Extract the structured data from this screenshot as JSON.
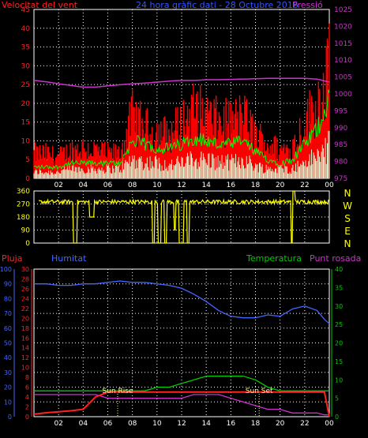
{
  "header": {
    "wind_speed_label": "Velocitat del vent",
    "title": "24 hora gràfic dati - 28 Octubre 2016",
    "pressure_label": "Pressió"
  },
  "compass": [
    "N",
    "W",
    "S",
    "E",
    "N"
  ],
  "lower_header": {
    "rain_label": "Pluja",
    "humidity_label": "Humitat",
    "temperature_label": "Temperatura",
    "dewpoint_label": "Punt rosada"
  },
  "annotations": {
    "sunrise": "Sun Rise",
    "sunset": "Sun Set"
  },
  "colors": {
    "wind_gust": "#ff0000",
    "wind_avg": "#00ff00",
    "wind_low": "#d8ffd8",
    "pressure": "#cc33cc",
    "direction": "#ffff00",
    "humidity": "#4466ff",
    "temperature": "#00cc00",
    "rain": "#ff2222",
    "dewpoint": "#cc33cc",
    "grid": "#ffffff",
    "sun": "#ffff88"
  },
  "chart_data": [
    {
      "type": "area",
      "name": "wind-chart",
      "x_ticks": [
        "02",
        "04",
        "06",
        "08",
        "10",
        "12",
        "14",
        "16",
        "18",
        "20",
        "22",
        "00"
      ],
      "xlim_hours": [
        0,
        24
      ],
      "ylim_left": [
        0,
        45
      ],
      "y_ticks_left": [
        0,
        5,
        10,
        15,
        20,
        25,
        30,
        35,
        40,
        45
      ],
      "ylim_right": [
        975,
        1025
      ],
      "y_ticks_right": [
        975,
        980,
        985,
        990,
        995,
        1000,
        1005,
        1010,
        1015,
        1020,
        1025
      ],
      "x": [
        0,
        1,
        2,
        3,
        4,
        5,
        6,
        7,
        8,
        9,
        10,
        11,
        12,
        13,
        14,
        15,
        16,
        17,
        18,
        19,
        20,
        21,
        22,
        23,
        24
      ],
      "series": [
        {
          "name": "gust",
          "values": [
            8,
            8,
            7,
            9,
            10,
            9,
            8,
            8,
            20,
            16,
            15,
            14,
            18,
            22,
            20,
            18,
            18,
            20,
            14,
            11,
            9,
            10,
            18,
            24,
            35
          ]
        },
        {
          "name": "average",
          "values": [
            3,
            3,
            3,
            4,
            4,
            4,
            4,
            4,
            10,
            9,
            8,
            8,
            9,
            11,
            10,
            9,
            9,
            10,
            7,
            5,
            4,
            5,
            9,
            13,
            22
          ]
        },
        {
          "name": "low",
          "values": [
            2,
            2,
            2,
            3,
            3,
            3,
            3,
            3,
            6,
            5,
            5,
            4,
            5,
            6,
            6,
            5,
            5,
            6,
            4,
            3,
            3,
            3,
            5,
            7,
            10
          ]
        },
        {
          "name": "pressure",
          "axis": "right",
          "values": [
            1004,
            1003.6,
            1003,
            1002.5,
            1002,
            1002,
            1002.4,
            1002.7,
            1003,
            1003.2,
            1003.5,
            1003.8,
            1004,
            1004,
            1004.2,
            1004.2,
            1004.3,
            1004.4,
            1004.5,
            1004.6,
            1004.6,
            1004.6,
            1004.6,
            1004.4,
            1003.5
          ]
        }
      ]
    },
    {
      "type": "line",
      "name": "wind-direction-chart",
      "x_ticks": [
        "02",
        "04",
        "06",
        "08",
        "10",
        "12",
        "14",
        "16",
        "18",
        "20",
        "22",
        "00"
      ],
      "xlim_hours": [
        0,
        24
      ],
      "ylim": [
        0,
        360
      ],
      "y_ticks": [
        0,
        90,
        180,
        270,
        360
      ],
      "baseline_deg": 285,
      "dropouts": [
        {
          "from": 3.2,
          "to": 3.5,
          "deg": 0
        },
        {
          "from": 4.5,
          "to": 4.9,
          "deg": 180
        },
        {
          "from": 9.6,
          "to": 9.8,
          "deg": 0
        },
        {
          "from": 10.1,
          "to": 10.3,
          "deg": 0
        },
        {
          "from": 10.6,
          "to": 10.8,
          "deg": 0
        },
        {
          "from": 11.4,
          "to": 11.5,
          "deg": 90
        },
        {
          "from": 11.8,
          "to": 12.2,
          "deg": 0
        },
        {
          "from": 12.4,
          "to": 12.6,
          "deg": 0
        },
        {
          "from": 20.9,
          "to": 21.0,
          "deg": 0
        },
        {
          "from": 21.0,
          "to": 21.2,
          "deg": 360
        }
      ]
    },
    {
      "type": "line",
      "name": "rain-humidity-temp-chart",
      "x_ticks": [
        "02",
        "04",
        "06",
        "08",
        "10",
        "12",
        "14",
        "16",
        "18",
        "20",
        "22",
        "00"
      ],
      "xlim_hours": [
        0,
        24
      ],
      "axes": {
        "humidity": {
          "range": [
            0,
            100
          ],
          "ticks": [
            0,
            10,
            20,
            30,
            40,
            50,
            60,
            70,
            80,
            90,
            100
          ]
        },
        "rain": {
          "range": [
            0,
            30
          ],
          "ticks": [
            0,
            2,
            4,
            6,
            8,
            10,
            12,
            14,
            16,
            18,
            20,
            22,
            24,
            26,
            28,
            30
          ]
        },
        "temperature": {
          "range": [
            0,
            40
          ],
          "ticks": [
            0,
            5,
            10,
            15,
            20,
            25,
            30,
            35,
            40
          ]
        }
      },
      "x": [
        0,
        1,
        2,
        3,
        4,
        5,
        6,
        7,
        8,
        9,
        10,
        11,
        12,
        13,
        14,
        15,
        16,
        17,
        18,
        19,
        20,
        21,
        22,
        23,
        23.6,
        24
      ],
      "series": [
        {
          "name": "humidity",
          "axis": "humidity",
          "values": [
            90,
            90,
            89,
            89,
            90,
            90,
            91,
            92,
            91,
            91,
            90,
            89,
            87,
            83,
            78,
            72,
            68,
            67,
            67,
            69,
            68,
            73,
            75,
            72,
            66,
            63
          ]
        },
        {
          "name": "temperature",
          "axis": "temperature",
          "values": [
            7,
            7,
            7,
            7,
            7,
            7,
            7,
            7,
            7,
            7,
            8,
            8,
            9,
            10,
            11,
            11,
            11,
            11,
            10,
            8,
            7,
            7,
            7,
            7,
            7,
            7
          ]
        },
        {
          "name": "dewpoint",
          "axis": "temperature",
          "values": [
            6,
            6,
            6,
            6,
            6,
            6,
            5,
            5,
            5,
            5,
            5,
            5,
            5,
            6,
            6,
            6,
            5,
            4,
            3,
            2,
            2,
            1,
            1,
            1,
            0.5,
            0.5
          ]
        },
        {
          "name": "rain_total",
          "axis": "rain",
          "values": [
            0.5,
            0.8,
            1.0,
            1.2,
            1.5,
            4.0,
            5.0,
            5.0,
            5.0,
            5.0,
            5.0,
            5.0,
            5.0,
            5.0,
            5.0,
            5.0,
            5.0,
            5.0,
            5.0,
            5.0,
            5.0,
            5.0,
            5.0,
            5.0,
            5.0,
            0.0
          ]
        }
      ],
      "sunrise_hour": 6.8,
      "sunset_hour": 18.3
    }
  ]
}
